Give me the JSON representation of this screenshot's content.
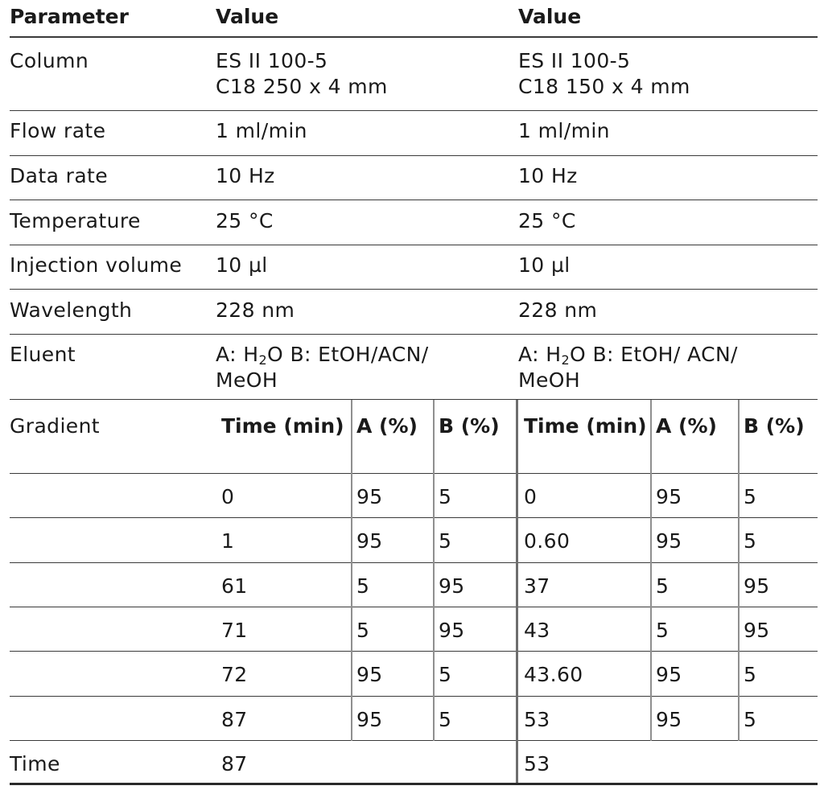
{
  "header": {
    "parameter": "Parameter",
    "value_1": "Value",
    "value_2": "Value"
  },
  "rows": {
    "column": {
      "label": "Column",
      "v1_line1": "ES II 100-5",
      "v1_line2": "C18 250 x 4 mm",
      "v2_line1": "ES II 100-5",
      "v2_line2": "C18 150 x 4 mm"
    },
    "flow_rate": {
      "label": "Flow rate",
      "v1": "1 ml/min",
      "v2": "1 ml/min"
    },
    "data_rate": {
      "label": "Data rate",
      "v1": "10 Hz",
      "v2": "10 Hz"
    },
    "temperature": {
      "label": "Temperature",
      "v1": "25 °C",
      "v2": "25 °C"
    },
    "injection_volume": {
      "label": "Injection volume",
      "v1": "10 µl",
      "v2": "10 µl"
    },
    "wavelength": {
      "label": "Wavelength",
      "v1": "228 nm",
      "v2": "228 nm"
    },
    "eluent": {
      "label": "Eluent",
      "v1_a": "A: H",
      "v1_sub": "2",
      "v1_b": "O B: EtOH/ACN/",
      "v1_line2": "MeOH",
      "v2_a": "A: H",
      "v2_sub": "2",
      "v2_b": "O B: EtOH/ ACN/",
      "v2_line2": "MeOH"
    },
    "gradient": {
      "label": "Gradient",
      "headers": [
        "Time (min)",
        "A (%)",
        "B (%)",
        "Time (min)",
        "A (%)",
        "B (%)"
      ],
      "data": [
        [
          "0",
          "95",
          "5",
          "0",
          "95",
          "5"
        ],
        [
          "1",
          "95",
          "5",
          "0.60",
          "95",
          "5"
        ],
        [
          "61",
          "5",
          "95",
          "37",
          "5",
          "95"
        ],
        [
          "71",
          "5",
          "95",
          "43",
          "5",
          "95"
        ],
        [
          "72",
          "95",
          "5",
          "43.60",
          "95",
          "5"
        ],
        [
          "87",
          "95",
          "5",
          "53",
          "95",
          "5"
        ]
      ]
    },
    "time": {
      "label": "Time",
      "v1": "87",
      "v2": "53"
    }
  }
}
